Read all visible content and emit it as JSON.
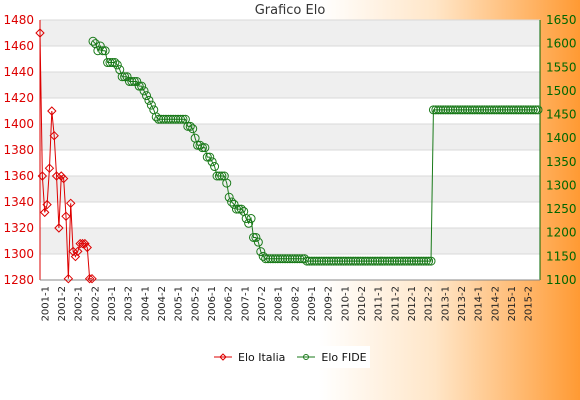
{
  "chart_data": {
    "type": "line",
    "title": "Grafico Elo",
    "y_left": {
      "min": 1280,
      "max": 1480,
      "ticks": [
        1280,
        1300,
        1320,
        1340,
        1360,
        1380,
        1400,
        1420,
        1440,
        1460,
        1480
      ],
      "color": "#dd0000"
    },
    "y_right": {
      "min": 1100,
      "max": 1650,
      "ticks": [
        1100,
        1150,
        1200,
        1250,
        1300,
        1350,
        1400,
        1450,
        1500,
        1550,
        1600,
        1650
      ],
      "color": "#006600"
    },
    "grid": true,
    "legend_position": "bottom-center",
    "x_tick_labels": [
      "2001-1",
      "2001-2",
      "2002-1",
      "2002-2",
      "2003-1",
      "2003-2",
      "2004-1",
      "2004-2",
      "2005-1",
      "2005-2",
      "2006-1",
      "2006-2",
      "2007-1",
      "2007-2",
      "2008-1",
      "2008-2",
      "2009-1",
      "2009-2",
      "2010-1",
      "2010-2",
      "2011-1",
      "2011-2",
      "2012-1",
      "2012-2",
      "2013-1",
      "2013-2",
      "2014-1",
      "2014-2",
      "2015-1",
      "2015-2"
    ],
    "series": [
      {
        "name": "Elo Italia",
        "axis": "left",
        "color": "#dd0000",
        "marker": "diamond",
        "values": [
          1470,
          1360,
          1332,
          1338,
          1366,
          1410,
          1391,
          1360,
          1320,
          1360,
          1358,
          1329,
          1281,
          1339,
          1302,
          1298,
          1302,
          1308,
          1308,
          1308,
          1305,
          1281,
          1281
        ]
      },
      {
        "name": "Elo FIDE",
        "axis": "right",
        "color": "#1a7a1a",
        "marker": "circle",
        "values": [
          1605,
          1600,
          1585,
          1595,
          1585,
          1585,
          1560,
          1560,
          1560,
          1560,
          1555,
          1545,
          1530,
          1530,
          1530,
          1520,
          1520,
          1520,
          1520,
          1510,
          1510,
          1500,
          1490,
          1480,
          1470,
          1460,
          1445,
          1440,
          1440,
          1440,
          1440,
          1440,
          1440,
          1440,
          1440,
          1440,
          1440,
          1440,
          1440,
          1425,
          1425,
          1420,
          1400,
          1385,
          1385,
          1380,
          1380,
          1360,
          1360,
          1350,
          1340,
          1320,
          1320,
          1320,
          1320,
          1305,
          1275,
          1265,
          1260,
          1250,
          1250,
          1250,
          1245,
          1230,
          1220,
          1230,
          1190,
          1190,
          1180,
          1160,
          1150,
          1145,
          1145,
          1145,
          1145,
          1145,
          1145,
          1145,
          1145,
          1145,
          1145,
          1145,
          1145,
          1145,
          1145,
          1145,
          1145,
          1145,
          1140,
          1140,
          1140,
          1140,
          1140,
          1140,
          1140,
          1140,
          1140,
          1140,
          1140,
          1140,
          1140,
          1140,
          1140,
          1140,
          1140,
          1140,
          1140,
          1140,
          1140,
          1140,
          1140,
          1140,
          1140,
          1140,
          1140,
          1140,
          1140,
          1140,
          1140,
          1140,
          1140,
          1140,
          1140,
          1140,
          1140,
          1140,
          1140,
          1140,
          1140,
          1140,
          1140,
          1140,
          1140,
          1140,
          1140,
          1140,
          1140,
          1140,
          1140,
          1140,
          1460,
          1460,
          1460,
          1460,
          1460,
          1460,
          1460,
          1460,
          1460,
          1460,
          1460,
          1460,
          1460,
          1460,
          1460,
          1460,
          1460,
          1460,
          1460,
          1460,
          1460,
          1460,
          1460,
          1460,
          1460,
          1460,
          1460,
          1460,
          1460,
          1460,
          1460,
          1460,
          1460,
          1460,
          1460,
          1460,
          1460,
          1460,
          1460,
          1460,
          1460,
          1460,
          1460,
          1460
        ]
      }
    ]
  }
}
